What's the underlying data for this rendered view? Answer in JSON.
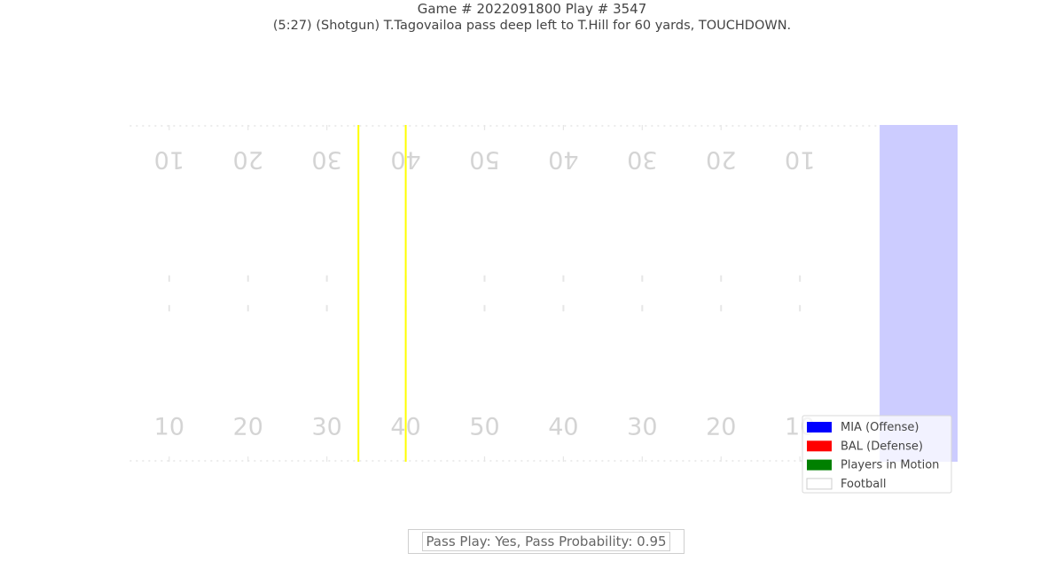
{
  "header": {
    "title": "Game # 2022091800 Play # 3547",
    "subtitle": "(5:27) (Shotgun) T.Tagovailoa pass deep left to T.Hill for 60 yards, TOUCHDOWN."
  },
  "footer": {
    "text": "Pass Play: Yes, Pass Probability: 0.95"
  },
  "chart_data": {
    "type": "scatter",
    "title": "Game # 2022091800 Play # 3547",
    "subtitle": "(5:27) (Shotgun) T.Tagovailoa pass deep left to T.Hill for 60 yards, TOUCHDOWN.",
    "xlim": [
      0,
      120
    ],
    "ylim": [
      0,
      53.3
    ],
    "yard_numbers": [
      "10",
      "20",
      "30",
      "40",
      "50",
      "40",
      "30",
      "20",
      "10"
    ],
    "yard_number_x": [
      20,
      30,
      40,
      50,
      60,
      70,
      80,
      90,
      100
    ],
    "line_of_scrimmage": 44,
    "first_down_line": 50,
    "endzone_x_range": [
      110,
      120
    ],
    "legend": {
      "placement": "lower-right",
      "entries": [
        {
          "label": "MIA (Offense)",
          "color": "#0000ff"
        },
        {
          "label": "BAL (Defense)",
          "color": "#ff0000"
        },
        {
          "label": "Players in Motion",
          "color": "#008000"
        },
        {
          "label": "Football",
          "color": "#ffffff"
        }
      ]
    },
    "colors": {
      "endzone": "#ccccff",
      "scrimmage_line": "#ffff00",
      "field_lines": "#e6e6e6",
      "numbers": "#d4d4d4"
    },
    "series": []
  }
}
